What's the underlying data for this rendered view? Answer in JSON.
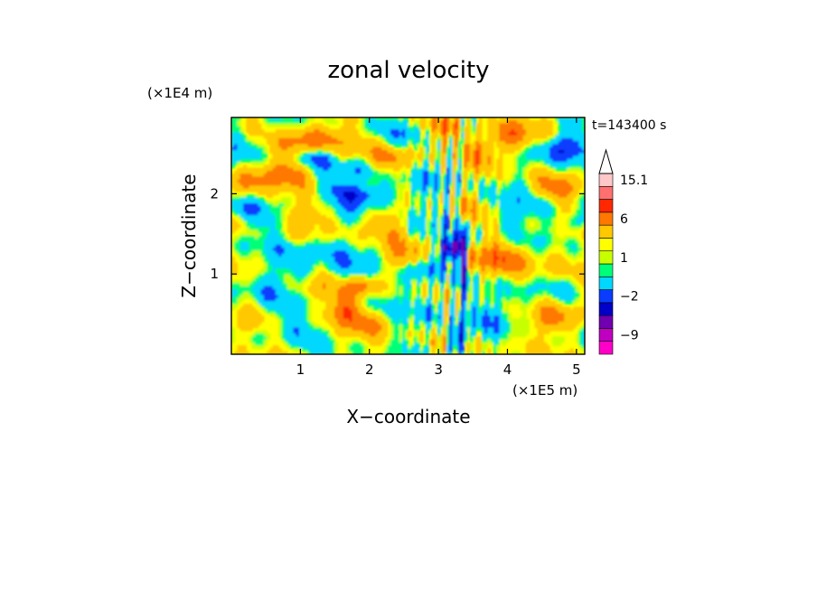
{
  "chart_data": {
    "type": "heatmap",
    "title": "zonal velocity",
    "xlabel": "X−coordinate",
    "ylabel": "Z−coordinate",
    "x_unit": "(×1E5 m)",
    "y_unit": "(×1E4 m)",
    "time_label": "t=143400 s",
    "xlim": [
      0,
      5.12
    ],
    "ylim": [
      0,
      2.95
    ],
    "x_ticks": [
      {
        "value": 1,
        "label": "1"
      },
      {
        "value": 2,
        "label": "2"
      },
      {
        "value": 3,
        "label": "3"
      },
      {
        "value": 4,
        "label": "4"
      },
      {
        "value": 5,
        "label": "5"
      }
    ],
    "y_ticks": [
      {
        "value": 1,
        "label": "1"
      },
      {
        "value": 2,
        "label": "2"
      }
    ],
    "colorbar": {
      "levels": [
        {
          "color": "#ff00c8",
          "label": ""
        },
        {
          "color": "#c000c0",
          "label": "−9"
        },
        {
          "color": "#7000b0",
          "label": ""
        },
        {
          "color": "#0000c8",
          "label": ""
        },
        {
          "color": "#0a3cff",
          "label": "−2"
        },
        {
          "color": "#00d8ff",
          "label": ""
        },
        {
          "color": "#00ff78",
          "label": ""
        },
        {
          "color": "#c8ff00",
          "label": "1"
        },
        {
          "color": "#ffff00",
          "label": ""
        },
        {
          "color": "#ffc800",
          "label": ""
        },
        {
          "color": "#ff7800",
          "label": "6"
        },
        {
          "color": "#ff2800",
          "label": ""
        },
        {
          "color": "#ff7070",
          "label": ""
        },
        {
          "color": "#ffc8c8",
          "label": "15.1"
        }
      ]
    }
  }
}
